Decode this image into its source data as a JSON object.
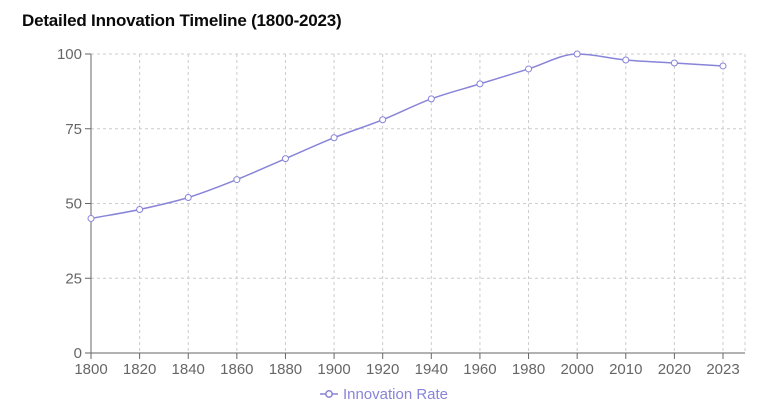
{
  "chart_data": {
    "type": "line",
    "title": "Detailed Innovation Timeline (1800-2023)",
    "categories": [
      "1800",
      "1820",
      "1840",
      "1860",
      "1880",
      "1900",
      "1920",
      "1940",
      "1960",
      "1980",
      "2000",
      "2010",
      "2020",
      "2023"
    ],
    "series": [
      {
        "name": "Innovation Rate",
        "values": [
          45,
          48,
          52,
          58,
          65,
          72,
          78,
          85,
          90,
          95,
          100,
          98,
          97,
          96
        ]
      }
    ],
    "xlabel": "",
    "ylabel": "",
    "ylim": [
      0,
      100
    ],
    "y_ticks": [
      0,
      25,
      50,
      75,
      100
    ],
    "grid": "dashed",
    "legend_position": "bottom-center",
    "line_style": "monotone-curve",
    "marker": "hollow-circle",
    "colors": {
      "series": "#8884d8",
      "axis_line": "#666666",
      "axis_text": "#666666",
      "grid": "#cccccc",
      "title": "#0a0a0a",
      "marker_fill": "#ffffff"
    }
  }
}
